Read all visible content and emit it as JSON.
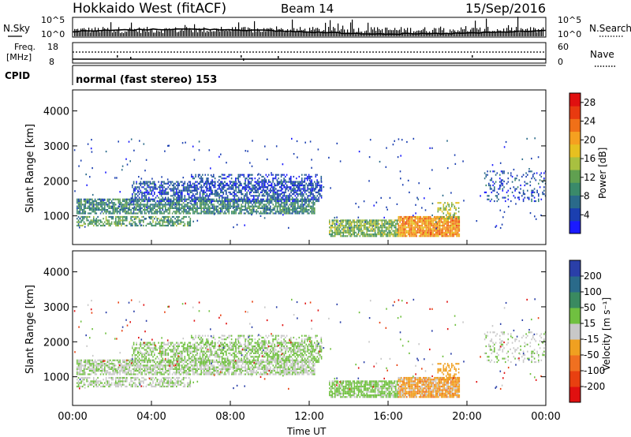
{
  "header": {
    "station": "Hokkaido West (fitACF)",
    "beam": "Beam 14",
    "date": "15/Sep/2016"
  },
  "top_panels": {
    "nsky_label": "N.Sky",
    "nsearch_label": "N.Search",
    "noise_ticks": [
      "10^5",
      "10^0"
    ],
    "freq_label": "Freq.",
    "freq_unit": "[MHz]",
    "freq_ticks": [
      "18",
      "8"
    ],
    "nave_label": "Nave",
    "nave_ticks": [
      "60",
      "0"
    ],
    "cpid_label": "CPID",
    "cpid_text": "normal (fast stereo) 153"
  },
  "chart_data": [
    {
      "type": "heatmap",
      "name": "power",
      "ylabel": "Slant Range [km]",
      "yticks": [
        1000,
        2000,
        3000,
        4000
      ],
      "ylim": [
        180,
        4600
      ],
      "colorbar": {
        "label": "Power [dB]",
        "ticks": [
          4,
          8,
          12,
          16,
          20,
          24,
          28
        ],
        "range": [
          0,
          30
        ],
        "colors": [
          "#1a1aff",
          "#1b3fb0",
          "#2a6a8a",
          "#3a8a6a",
          "#60a050",
          "#a8c040",
          "#e6c020",
          "#f5a020",
          "#f07018",
          "#e83a10",
          "#e01010"
        ]
      }
    },
    {
      "type": "heatmap",
      "name": "velocity",
      "ylabel": "Slant Range [km]",
      "yticks": [
        1000,
        2000,
        3000,
        4000
      ],
      "ylim": [
        180,
        4600
      ],
      "colorbar": {
        "label": "Velocity [m s⁻¹]",
        "ticks": [
          "200",
          "100",
          "50",
          "15",
          "-15",
          "-50",
          "-100",
          "-200"
        ],
        "colors": [
          "#2a3fa8",
          "#2a6a8a",
          "#3a8a60",
          "#70c040",
          "#c8c8c8",
          "#f0a020",
          "#f07020",
          "#e84010",
          "#e01010"
        ]
      }
    }
  ],
  "xaxis": {
    "ticks": [
      "00:00",
      "04:00",
      "08:00",
      "12:00",
      "16:00",
      "20:00",
      "00:00"
    ],
    "label": "Time UT"
  }
}
